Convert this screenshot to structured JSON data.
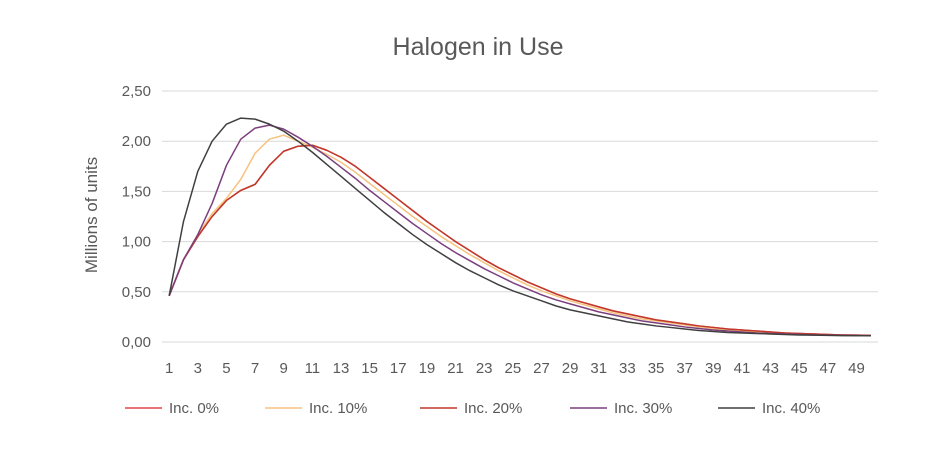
{
  "chart_data": {
    "type": "line",
    "title": "Halogen in Use",
    "xlabel": "",
    "ylabel": "Millions of units",
    "x": [
      1,
      2,
      3,
      4,
      5,
      6,
      7,
      8,
      9,
      10,
      11,
      12,
      13,
      14,
      15,
      16,
      17,
      18,
      19,
      20,
      21,
      22,
      23,
      24,
      25,
      26,
      27,
      28,
      29,
      30,
      31,
      32,
      33,
      34,
      35,
      36,
      37,
      38,
      39,
      40,
      41,
      42,
      43,
      44,
      45,
      46,
      47,
      48,
      49,
      50
    ],
    "x_tick_labels": [
      "1",
      "3",
      "5",
      "7",
      "9",
      "11",
      "13",
      "15",
      "17",
      "19",
      "21",
      "23",
      "25",
      "27",
      "29",
      "31",
      "33",
      "35",
      "37",
      "39",
      "41",
      "43",
      "45",
      "47",
      "49"
    ],
    "ylim": [
      0,
      2.5
    ],
    "y_tick_labels": [
      "0,00",
      "0,50",
      "1,00",
      "1,50",
      "2,00",
      "2,50"
    ],
    "grid": true,
    "legend_position": "bottom",
    "series": [
      {
        "name": "Inc. 0%",
        "color": "#e0474c",
        "values": [
          0.46,
          0.82,
          1.05,
          1.25,
          1.41,
          1.51,
          1.57,
          1.76,
          1.9,
          1.95,
          1.96,
          1.91,
          1.84,
          1.75,
          1.64,
          1.53,
          1.42,
          1.31,
          1.2,
          1.1,
          1.0,
          0.91,
          0.82,
          0.74,
          0.67,
          0.6,
          0.54,
          0.48,
          0.43,
          0.39,
          0.35,
          0.31,
          0.28,
          0.25,
          0.22,
          0.2,
          0.18,
          0.16,
          0.145,
          0.13,
          0.12,
          0.11,
          0.1,
          0.09,
          0.085,
          0.08,
          0.075,
          0.07,
          0.068,
          0.066
        ]
      },
      {
        "name": "Inc. 10%",
        "color": "#f6c27e",
        "values": [
          0.46,
          0.82,
          1.07,
          1.28,
          1.43,
          1.62,
          1.88,
          2.02,
          2.06,
          2.0,
          1.94,
          1.87,
          1.79,
          1.69,
          1.58,
          1.47,
          1.36,
          1.25,
          1.15,
          1.05,
          0.96,
          0.87,
          0.79,
          0.71,
          0.64,
          0.57,
          0.51,
          0.46,
          0.41,
          0.37,
          0.33,
          0.29,
          0.26,
          0.23,
          0.21,
          0.19,
          0.17,
          0.15,
          0.135,
          0.12,
          0.11,
          0.1,
          0.095,
          0.09,
          0.08,
          0.075,
          0.07,
          0.068,
          0.066,
          0.065
        ]
      },
      {
        "name": "Inc. 20%",
        "color": "#c0392b",
        "values": [
          0.46,
          0.82,
          1.05,
          1.25,
          1.41,
          1.51,
          1.57,
          1.76,
          1.9,
          1.95,
          1.96,
          1.91,
          1.84,
          1.75,
          1.64,
          1.53,
          1.42,
          1.31,
          1.2,
          1.1,
          1.0,
          0.91,
          0.82,
          0.74,
          0.67,
          0.6,
          0.54,
          0.48,
          0.43,
          0.39,
          0.35,
          0.31,
          0.28,
          0.25,
          0.22,
          0.2,
          0.18,
          0.16,
          0.145,
          0.13,
          0.12,
          0.11,
          0.1,
          0.09,
          0.085,
          0.08,
          0.075,
          0.07,
          0.068,
          0.066
        ]
      },
      {
        "name": "Inc. 30%",
        "color": "#7b3f7f",
        "values": [
          0.46,
          0.82,
          1.07,
          1.38,
          1.76,
          2.02,
          2.13,
          2.16,
          2.12,
          2.04,
          1.95,
          1.85,
          1.74,
          1.63,
          1.51,
          1.4,
          1.29,
          1.18,
          1.08,
          0.98,
          0.89,
          0.81,
          0.73,
          0.66,
          0.59,
          0.53,
          0.47,
          0.42,
          0.38,
          0.34,
          0.3,
          0.27,
          0.24,
          0.21,
          0.19,
          0.17,
          0.15,
          0.135,
          0.12,
          0.11,
          0.1,
          0.09,
          0.085,
          0.08,
          0.075,
          0.07,
          0.068,
          0.066,
          0.064,
          0.063
        ]
      },
      {
        "name": "Inc. 40%",
        "color": "#404040",
        "values": [
          0.46,
          1.2,
          1.7,
          2.0,
          2.17,
          2.23,
          2.22,
          2.17,
          2.1,
          2.0,
          1.89,
          1.77,
          1.65,
          1.53,
          1.41,
          1.29,
          1.18,
          1.07,
          0.97,
          0.88,
          0.79,
          0.71,
          0.64,
          0.57,
          0.51,
          0.46,
          0.41,
          0.36,
          0.32,
          0.29,
          0.26,
          0.23,
          0.2,
          0.18,
          0.16,
          0.145,
          0.13,
          0.115,
          0.105,
          0.095,
          0.09,
          0.085,
          0.08,
          0.075,
          0.07,
          0.068,
          0.066,
          0.064,
          0.063,
          0.062
        ]
      }
    ]
  }
}
